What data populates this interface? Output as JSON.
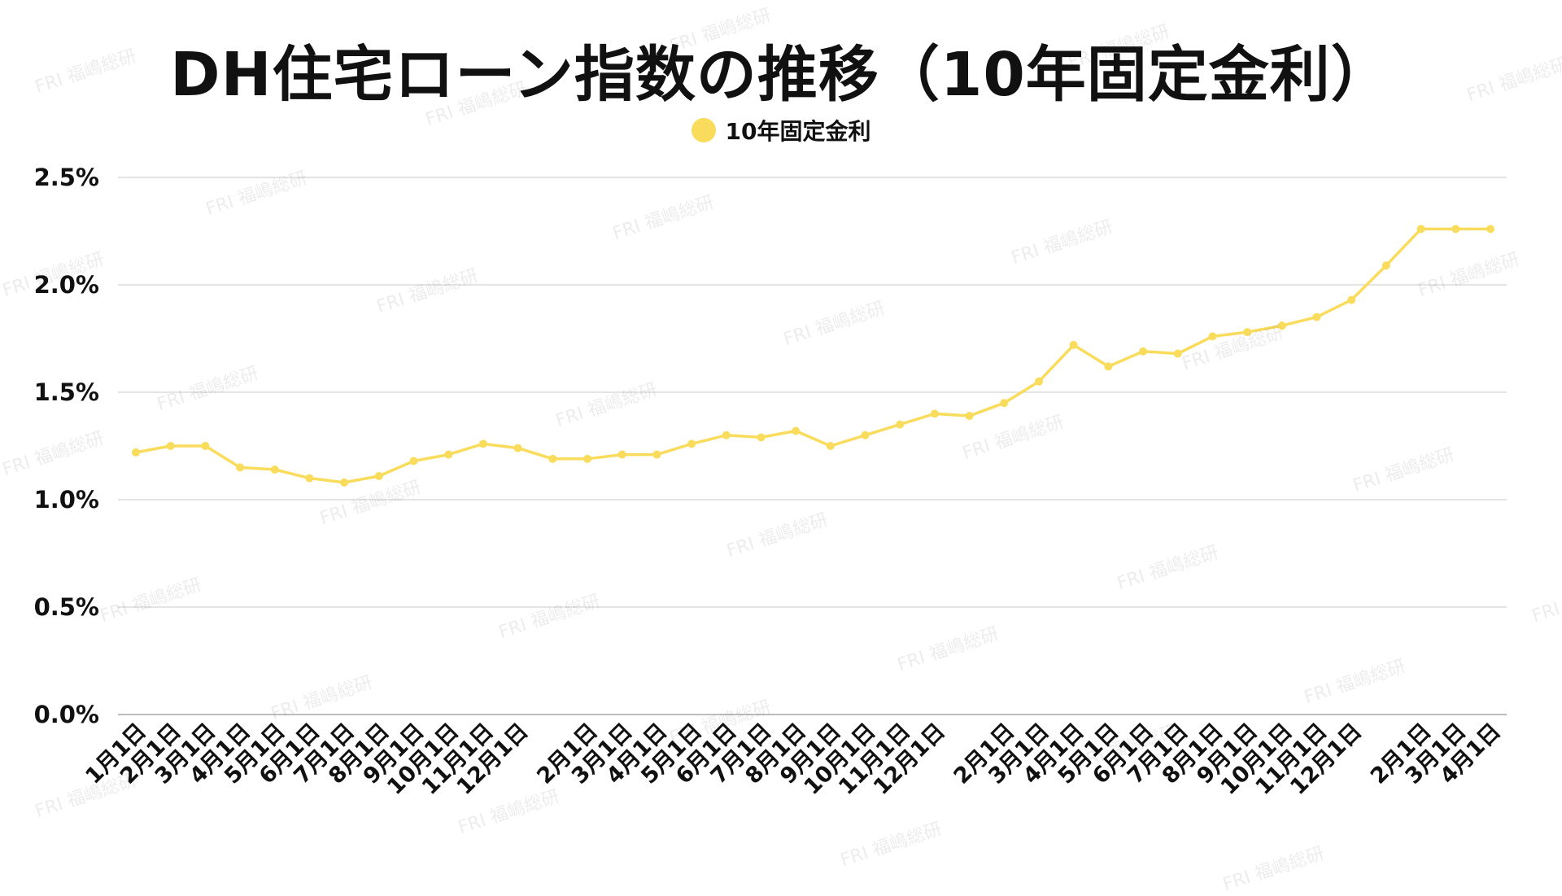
{
  "chart_data": {
    "type": "line",
    "title": "DH住宅ローン指数の推移（10年固定金利）",
    "ylim": [
      0,
      2.5
    ],
    "yticks": [
      "0.0%",
      "0.5%",
      "1.0%",
      "1.5%",
      "2.0%",
      "2.5%"
    ],
    "grid": true,
    "legend_position": "top-center",
    "categories": [
      "1月1日",
      "2月1日",
      "3月1日",
      "4月1日",
      "5月1日",
      "6月1日",
      "7月1日",
      "8月1日",
      "9月1日",
      "10月1日",
      "11月1日",
      "12月1日",
      "",
      "2月1日",
      "3月1日",
      "4月1日",
      "5月1日",
      "6月1日",
      "7月1日",
      "8月1日",
      "9月1日",
      "10月1日",
      "11月1日",
      "12月1日",
      "",
      "2月1日",
      "3月1日",
      "4月1日",
      "5月1日",
      "6月1日",
      "7月1日",
      "8月1日",
      "9月1日",
      "10月1日",
      "11月1日",
      "12月1日",
      "",
      "2月1日",
      "3月1日",
      "4月1日"
    ],
    "series": [
      {
        "name": "10年固定金利",
        "color": "#f9dc5c",
        "values": [
          1.22,
          1.25,
          1.25,
          1.15,
          1.14,
          1.1,
          1.08,
          1.11,
          1.18,
          1.21,
          1.26,
          1.24,
          1.19,
          1.19,
          1.21,
          1.21,
          1.26,
          1.3,
          1.29,
          1.32,
          1.25,
          1.3,
          1.35,
          1.4,
          1.39,
          1.45,
          1.55,
          1.72,
          1.62,
          1.69,
          1.68,
          1.76,
          1.78,
          1.81,
          1.85,
          1.93,
          2.09,
          2.26,
          2.26,
          2.26
        ]
      }
    ]
  },
  "watermark": "FRI 福嶋総研"
}
